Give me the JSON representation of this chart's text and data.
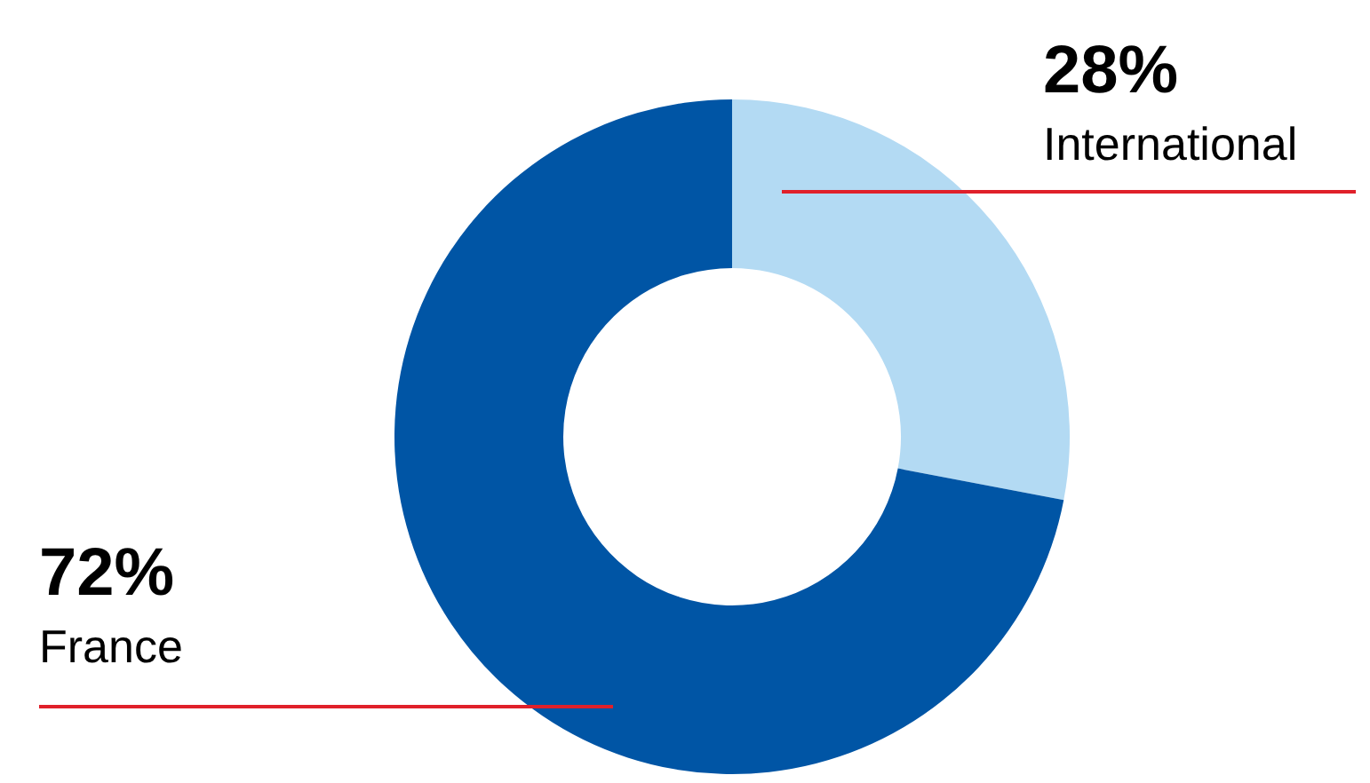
{
  "chart_data": {
    "type": "donut",
    "categories": [
      "International",
      "France"
    ],
    "values": [
      28,
      72
    ],
    "colors": [
      "#b3daf3",
      "#0055a5"
    ],
    "value_labels": [
      "28%",
      "72%"
    ],
    "legend": false
  }
}
